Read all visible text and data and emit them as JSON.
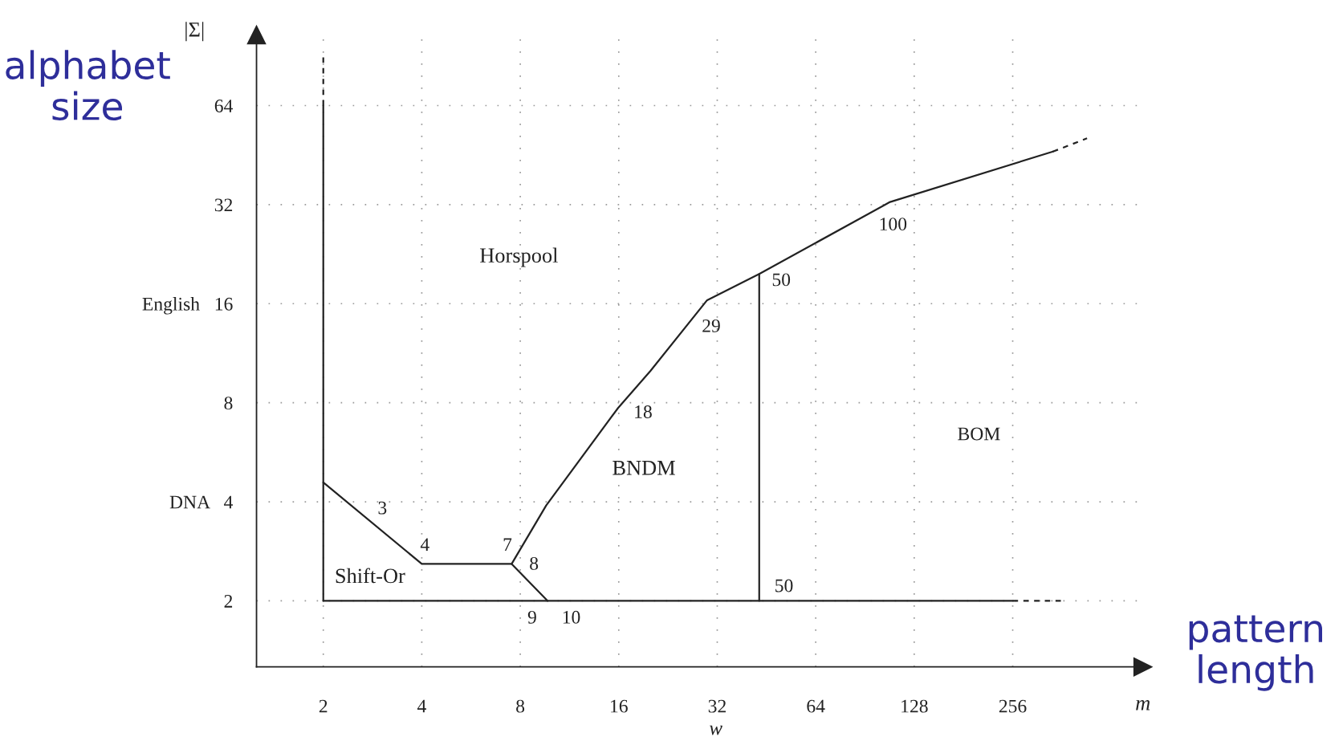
{
  "chart_data": {
    "type": "line",
    "ylabel": "|Σ|",
    "xlabel": "m",
    "log": "xy",
    "grid": true,
    "line_style": "solid",
    "marker": "none",
    "xlim": [
      1.25,
      640
    ],
    "ylim": [
      1.26,
      105
    ],
    "xticks": [
      2,
      4,
      8,
      16,
      32,
      64,
      128,
      256
    ],
    "yticks": [
      2,
      {
        "value": 4,
        "label": "DNA   4"
      },
      8,
      {
        "value": 16,
        "label": "English   16"
      },
      32,
      64
    ],
    "series": [
      {
        "color": "#222222",
        "x": [
          2,
          2
        ],
        "values": [
          2,
          64
        ]
      },
      {
        "color": "#222222",
        "x": [
          2,
          2
        ],
        "values": [
          64,
          90
        ],
        "line_style": "dashed"
      },
      {
        "color": "#222222",
        "x": [
          2,
          4,
          7.53,
          9.7
        ],
        "values": [
          4.58,
          2.59,
          2.59,
          2
        ]
      },
      {
        "color": "#222222",
        "x": [
          7.53,
          9.6,
          15.9,
          20,
          29.8,
          43,
          108,
          340
        ],
        "values": [
          2.59,
          3.9,
          7.7,
          10.0,
          16.4,
          19.7,
          32.6,
          46.4
        ]
      },
      {
        "color": "#222222",
        "x": [
          340,
          432
        ],
        "values": [
          46.4,
          50.9
        ],
        "line_style": "dashed"
      },
      {
        "color": "#222222",
        "x": [
          43,
          43
        ],
        "values": [
          2,
          19.7
        ]
      },
      {
        "color": "#222222",
        "x": [
          2,
          256
        ],
        "values": [
          2,
          2
        ]
      },
      {
        "color": "#222222",
        "x": [
          256,
          362
        ],
        "values": [
          2,
          2
        ],
        "line_style": "dashed"
      }
    ],
    "annotations": [
      "alphabet\nsize",
      "pattern\nlength",
      "w",
      "3",
      "4",
      "7",
      "8",
      "9",
      "10",
      "18",
      "29",
      "50",
      "50",
      "100",
      "Horspool",
      "BNDM",
      "BOM",
      "Shift-Or"
    ]
  }
}
